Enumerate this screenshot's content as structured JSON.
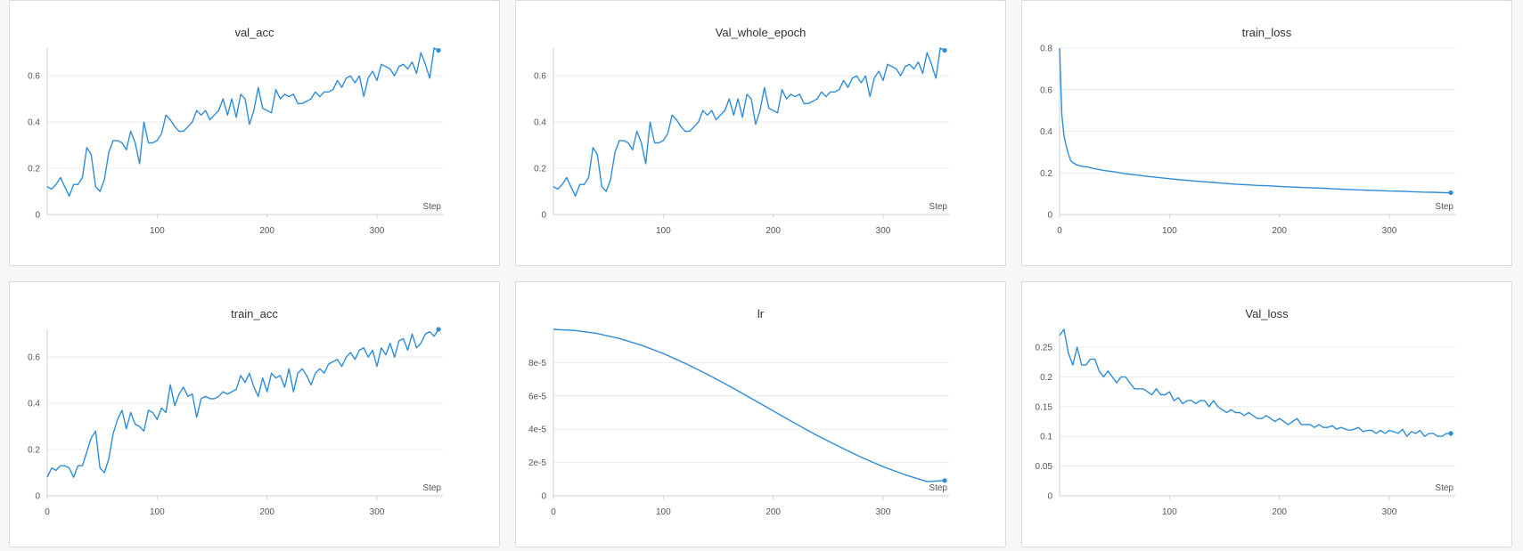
{
  "chart_data": [
    {
      "type": "line",
      "title": "val_acc",
      "xlabel": "Step",
      "ylabel": "",
      "xlim": [
        0,
        360
      ],
      "ylim": [
        0,
        0.72
      ],
      "xticks": [
        100,
        200,
        300
      ],
      "yticks": [
        0,
        0.2,
        0.4,
        0.6
      ],
      "ytick_labels": [
        "0",
        "0.2",
        "0.4",
        "0.6"
      ],
      "grid": true,
      "legend": "none",
      "color": "#2f8dd8",
      "end_marker": true,
      "series": [
        {
          "x": [
            0,
            4,
            8,
            12,
            16,
            20,
            24,
            28,
            32,
            36,
            40,
            44,
            48,
            52,
            56,
            60,
            64,
            68,
            72,
            76,
            80,
            84,
            88,
            92,
            96,
            100,
            104,
            108,
            112,
            116,
            120,
            124,
            128,
            132,
            136,
            140,
            144,
            148,
            152,
            156,
            160,
            164,
            168,
            172,
            176,
            180,
            184,
            188,
            192,
            196,
            200,
            204,
            208,
            212,
            216,
            220,
            224,
            228,
            232,
            236,
            240,
            244,
            248,
            252,
            256,
            260,
            264,
            268,
            272,
            276,
            280,
            284,
            288,
            292,
            296,
            300,
            304,
            308,
            312,
            316,
            320,
            324,
            328,
            332,
            336,
            340,
            344,
            348,
            352,
            356
          ],
          "y": [
            0.12,
            0.11,
            0.13,
            0.16,
            0.12,
            0.08,
            0.13,
            0.13,
            0.16,
            0.29,
            0.26,
            0.12,
            0.1,
            0.15,
            0.27,
            0.32,
            0.32,
            0.31,
            0.28,
            0.36,
            0.31,
            0.22,
            0.4,
            0.31,
            0.31,
            0.32,
            0.35,
            0.43,
            0.41,
            0.38,
            0.36,
            0.36,
            0.38,
            0.4,
            0.45,
            0.43,
            0.45,
            0.41,
            0.43,
            0.45,
            0.5,
            0.43,
            0.5,
            0.42,
            0.52,
            0.5,
            0.39,
            0.45,
            0.55,
            0.46,
            0.45,
            0.44,
            0.54,
            0.5,
            0.52,
            0.51,
            0.52,
            0.48,
            0.48,
            0.49,
            0.5,
            0.53,
            0.51,
            0.53,
            0.53,
            0.54,
            0.58,
            0.55,
            0.59,
            0.6,
            0.57,
            0.6,
            0.51,
            0.59,
            0.62,
            0.58,
            0.65,
            0.64,
            0.63,
            0.6,
            0.64,
            0.65,
            0.63,
            0.66,
            0.61,
            0.7,
            0.65,
            0.59,
            0.72,
            0.71
          ]
        }
      ]
    },
    {
      "type": "line",
      "title": "Val_whole_epoch",
      "xlabel": "Step",
      "ylabel": "",
      "xlim": [
        0,
        360
      ],
      "ylim": [
        0,
        0.72
      ],
      "xticks": [
        100,
        200,
        300
      ],
      "yticks": [
        0,
        0.2,
        0.4,
        0.6
      ],
      "ytick_labels": [
        "0",
        "0.2",
        "0.4",
        "0.6"
      ],
      "grid": true,
      "legend": "none",
      "color": "#2f8dd8",
      "end_marker": true,
      "series": [
        {
          "x": [
            0,
            4,
            8,
            12,
            16,
            20,
            24,
            28,
            32,
            36,
            40,
            44,
            48,
            52,
            56,
            60,
            64,
            68,
            72,
            76,
            80,
            84,
            88,
            92,
            96,
            100,
            104,
            108,
            112,
            116,
            120,
            124,
            128,
            132,
            136,
            140,
            144,
            148,
            152,
            156,
            160,
            164,
            168,
            172,
            176,
            180,
            184,
            188,
            192,
            196,
            200,
            204,
            208,
            212,
            216,
            220,
            224,
            228,
            232,
            236,
            240,
            244,
            248,
            252,
            256,
            260,
            264,
            268,
            272,
            276,
            280,
            284,
            288,
            292,
            296,
            300,
            304,
            308,
            312,
            316,
            320,
            324,
            328,
            332,
            336,
            340,
            344,
            348,
            352,
            356
          ],
          "y": [
            0.12,
            0.11,
            0.13,
            0.16,
            0.12,
            0.08,
            0.13,
            0.13,
            0.16,
            0.29,
            0.26,
            0.12,
            0.1,
            0.15,
            0.27,
            0.32,
            0.32,
            0.31,
            0.28,
            0.36,
            0.31,
            0.22,
            0.4,
            0.31,
            0.31,
            0.32,
            0.35,
            0.43,
            0.41,
            0.38,
            0.36,
            0.36,
            0.38,
            0.4,
            0.45,
            0.43,
            0.45,
            0.41,
            0.43,
            0.45,
            0.5,
            0.43,
            0.5,
            0.42,
            0.52,
            0.5,
            0.39,
            0.45,
            0.55,
            0.46,
            0.45,
            0.44,
            0.54,
            0.5,
            0.52,
            0.51,
            0.52,
            0.48,
            0.48,
            0.49,
            0.5,
            0.53,
            0.51,
            0.53,
            0.53,
            0.54,
            0.58,
            0.55,
            0.59,
            0.6,
            0.57,
            0.6,
            0.51,
            0.59,
            0.62,
            0.58,
            0.65,
            0.64,
            0.63,
            0.6,
            0.64,
            0.65,
            0.63,
            0.66,
            0.61,
            0.7,
            0.65,
            0.59,
            0.72,
            0.71
          ]
        }
      ]
    },
    {
      "type": "line",
      "title": "train_loss",
      "xlabel": "Step",
      "ylabel": "",
      "xlim": [
        0,
        360
      ],
      "ylim": [
        0,
        0.8
      ],
      "xticks": [
        0,
        100,
        200,
        300
      ],
      "yticks": [
        0,
        0.2,
        0.4,
        0.6,
        0.8
      ],
      "ytick_labels": [
        "0",
        "0.2",
        "0.4",
        "0.6",
        "0.8"
      ],
      "grid": true,
      "legend": "none",
      "color": "#2f8dd8",
      "end_marker": true,
      "series": [
        {
          "x": [
            0,
            2,
            4,
            6,
            8,
            10,
            12,
            15,
            18,
            22,
            26,
            30,
            40,
            50,
            60,
            70,
            80,
            90,
            100,
            110,
            120,
            130,
            140,
            150,
            160,
            170,
            180,
            190,
            200,
            210,
            220,
            230,
            240,
            250,
            260,
            270,
            280,
            290,
            300,
            310,
            320,
            330,
            340,
            350,
            356
          ],
          "y": [
            0.8,
            0.48,
            0.38,
            0.33,
            0.29,
            0.26,
            0.25,
            0.24,
            0.235,
            0.23,
            0.228,
            0.222,
            0.212,
            0.205,
            0.196,
            0.19,
            0.183,
            0.178,
            0.172,
            0.167,
            0.162,
            0.158,
            0.154,
            0.15,
            0.146,
            0.143,
            0.14,
            0.138,
            0.135,
            0.132,
            0.13,
            0.128,
            0.126,
            0.123,
            0.121,
            0.119,
            0.117,
            0.115,
            0.113,
            0.112,
            0.11,
            0.108,
            0.107,
            0.105,
            0.105
          ]
        }
      ]
    },
    {
      "type": "line",
      "title": "train_acc",
      "xlabel": "Step",
      "ylabel": "",
      "xlim": [
        0,
        360
      ],
      "ylim": [
        0,
        0.72
      ],
      "xticks": [
        0,
        100,
        200,
        300
      ],
      "yticks": [
        0,
        0.2,
        0.4,
        0.6
      ],
      "ytick_labels": [
        "0",
        "0.2",
        "0.4",
        "0.6"
      ],
      "grid": true,
      "legend": "none",
      "color": "#2f8dd8",
      "end_marker": true,
      "series": [
        {
          "x": [
            0,
            4,
            8,
            12,
            16,
            20,
            24,
            28,
            32,
            36,
            40,
            44,
            48,
            52,
            56,
            60,
            64,
            68,
            72,
            76,
            80,
            84,
            88,
            92,
            96,
            100,
            104,
            108,
            112,
            116,
            120,
            124,
            128,
            132,
            136,
            140,
            144,
            148,
            152,
            156,
            160,
            164,
            168,
            172,
            176,
            180,
            184,
            188,
            192,
            196,
            200,
            204,
            208,
            212,
            216,
            220,
            224,
            228,
            232,
            236,
            240,
            244,
            248,
            252,
            256,
            260,
            264,
            268,
            272,
            276,
            280,
            284,
            288,
            292,
            296,
            300,
            304,
            308,
            312,
            316,
            320,
            324,
            328,
            332,
            336,
            340,
            344,
            348,
            352,
            356
          ],
          "y": [
            0.08,
            0.12,
            0.11,
            0.13,
            0.13,
            0.12,
            0.08,
            0.13,
            0.13,
            0.19,
            0.25,
            0.28,
            0.12,
            0.1,
            0.16,
            0.27,
            0.33,
            0.37,
            0.29,
            0.36,
            0.31,
            0.3,
            0.28,
            0.37,
            0.36,
            0.33,
            0.38,
            0.36,
            0.48,
            0.39,
            0.44,
            0.47,
            0.43,
            0.44,
            0.34,
            0.42,
            0.43,
            0.42,
            0.42,
            0.43,
            0.45,
            0.44,
            0.45,
            0.46,
            0.52,
            0.49,
            0.53,
            0.47,
            0.43,
            0.51,
            0.45,
            0.53,
            0.51,
            0.52,
            0.47,
            0.55,
            0.45,
            0.53,
            0.55,
            0.52,
            0.48,
            0.53,
            0.55,
            0.53,
            0.57,
            0.58,
            0.59,
            0.56,
            0.6,
            0.62,
            0.59,
            0.63,
            0.64,
            0.6,
            0.63,
            0.56,
            0.64,
            0.61,
            0.66,
            0.6,
            0.67,
            0.68,
            0.63,
            0.7,
            0.64,
            0.66,
            0.7,
            0.71,
            0.69,
            0.72
          ]
        }
      ]
    },
    {
      "type": "line",
      "title": "lr",
      "xlabel": "Step",
      "ylabel": "",
      "xlim": [
        0,
        360
      ],
      "ylim": [
        0,
        0.0001
      ],
      "xticks": [
        0,
        100,
        200,
        300
      ],
      "yticks": [
        0,
        2e-05,
        4e-05,
        6e-05,
        8e-05
      ],
      "ytick_labels": [
        "0",
        "2e-5",
        "4e-5",
        "6e-5",
        "8e-5"
      ],
      "grid": true,
      "legend": "none",
      "color": "#2f8dd8",
      "end_marker": true,
      "series": [
        {
          "x": [
            0,
            20,
            40,
            60,
            80,
            100,
            120,
            140,
            160,
            180,
            200,
            220,
            240,
            260,
            280,
            300,
            320,
            340,
            356
          ],
          "y": [
            0.0001,
            9.93e-05,
            9.75e-05,
            9.45e-05,
            9.05e-05,
            8.55e-05,
            7.95e-05,
            7.3e-05,
            6.6e-05,
            5.85e-05,
            5.1e-05,
            4.35e-05,
            3.62e-05,
            2.95e-05,
            2.32e-05,
            1.75e-05,
            1.26e-05,
            8.5e-06,
            9.2e-06
          ]
        }
      ]
    },
    {
      "type": "line",
      "title": "Val_loss",
      "xlabel": "Step",
      "ylabel": "",
      "xlim": [
        0,
        360
      ],
      "ylim": [
        0,
        0.28
      ],
      "xticks": [
        100,
        200,
        300
      ],
      "yticks": [
        0,
        0.05,
        0.1,
        0.15,
        0.2,
        0.25
      ],
      "ytick_labels": [
        "0",
        "0.05",
        "0.1",
        "0.15",
        "0.2",
        "0.25"
      ],
      "grid": true,
      "legend": "none",
      "color": "#2f8dd8",
      "end_marker": true,
      "series": [
        {
          "x": [
            0,
            4,
            8,
            12,
            16,
            20,
            24,
            28,
            32,
            36,
            40,
            44,
            48,
            52,
            56,
            60,
            64,
            68,
            72,
            76,
            80,
            84,
            88,
            92,
            96,
            100,
            104,
            108,
            112,
            116,
            120,
            124,
            128,
            132,
            136,
            140,
            144,
            148,
            152,
            156,
            160,
            164,
            168,
            172,
            176,
            180,
            184,
            188,
            192,
            196,
            200,
            204,
            208,
            212,
            216,
            220,
            224,
            228,
            232,
            236,
            240,
            244,
            248,
            252,
            256,
            260,
            264,
            268,
            272,
            276,
            280,
            284,
            288,
            292,
            296,
            300,
            304,
            308,
            312,
            316,
            320,
            324,
            328,
            332,
            336,
            340,
            344,
            348,
            352,
            356
          ],
          "y": [
            0.27,
            0.28,
            0.24,
            0.22,
            0.25,
            0.22,
            0.22,
            0.23,
            0.23,
            0.21,
            0.2,
            0.21,
            0.2,
            0.19,
            0.2,
            0.2,
            0.19,
            0.18,
            0.18,
            0.18,
            0.175,
            0.17,
            0.18,
            0.17,
            0.17,
            0.175,
            0.16,
            0.165,
            0.155,
            0.16,
            0.16,
            0.155,
            0.16,
            0.16,
            0.15,
            0.16,
            0.15,
            0.145,
            0.14,
            0.145,
            0.14,
            0.14,
            0.135,
            0.14,
            0.135,
            0.13,
            0.13,
            0.135,
            0.13,
            0.125,
            0.13,
            0.125,
            0.12,
            0.125,
            0.13,
            0.12,
            0.12,
            0.12,
            0.115,
            0.12,
            0.115,
            0.115,
            0.118,
            0.112,
            0.115,
            0.112,
            0.11,
            0.112,
            0.115,
            0.108,
            0.11,
            0.11,
            0.105,
            0.11,
            0.105,
            0.11,
            0.108,
            0.105,
            0.112,
            0.1,
            0.108,
            0.105,
            0.11,
            0.1,
            0.105,
            0.105,
            0.1,
            0.1,
            0.105,
            0.105
          ]
        }
      ]
    }
  ]
}
